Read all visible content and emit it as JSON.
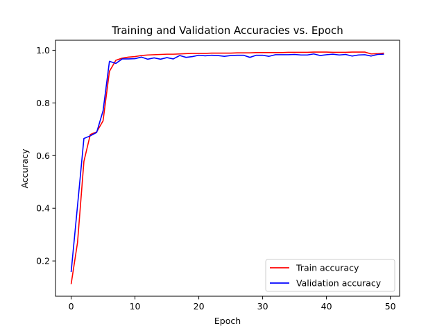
{
  "chart_data": {
    "type": "line",
    "title": "Training and Validation Accuracies vs. Epoch",
    "xlabel": "Epoch",
    "ylabel": "Accuracy",
    "xlim": [
      -2.45,
      51.45
    ],
    "ylim": [
      0.066,
      1.038
    ],
    "xticks": [
      0,
      10,
      20,
      30,
      40,
      50
    ],
    "yticks": [
      0.2,
      0.4,
      0.6,
      0.8,
      1.0
    ],
    "ytick_labels": [
      "0.2",
      "0.4",
      "0.6",
      "0.8",
      "1.0"
    ],
    "grid": false,
    "legend_position": "lower-right",
    "x": [
      0,
      1,
      2,
      3,
      4,
      5,
      6,
      7,
      8,
      9,
      10,
      11,
      12,
      13,
      14,
      15,
      16,
      17,
      18,
      19,
      20,
      21,
      22,
      23,
      24,
      25,
      26,
      27,
      28,
      29,
      30,
      31,
      32,
      33,
      34,
      35,
      36,
      37,
      38,
      39,
      40,
      41,
      42,
      43,
      44,
      45,
      46,
      47,
      48,
      49
    ],
    "series": [
      {
        "name": "Train accuracy",
        "color": "#ff0000",
        "values": [
          0.112,
          0.27,
          0.578,
          0.68,
          0.69,
          0.732,
          0.92,
          0.962,
          0.97,
          0.974,
          0.976,
          0.98,
          0.982,
          0.983,
          0.984,
          0.985,
          0.985,
          0.986,
          0.987,
          0.988,
          0.988,
          0.988,
          0.989,
          0.989,
          0.989,
          0.989,
          0.99,
          0.99,
          0.99,
          0.991,
          0.991,
          0.991,
          0.991,
          0.991,
          0.992,
          0.992,
          0.992,
          0.992,
          0.993,
          0.993,
          0.993,
          0.992,
          0.992,
          0.992,
          0.993,
          0.993,
          0.993,
          0.986,
          0.987,
          0.989
        ]
      },
      {
        "name": "Validation accuracy",
        "color": "#0000ff",
        "values": [
          0.158,
          0.41,
          0.665,
          0.675,
          0.688,
          0.77,
          0.958,
          0.95,
          0.967,
          0.967,
          0.968,
          0.974,
          0.966,
          0.971,
          0.966,
          0.972,
          0.967,
          0.98,
          0.973,
          0.976,
          0.981,
          0.979,
          0.981,
          0.98,
          0.977,
          0.98,
          0.981,
          0.981,
          0.973,
          0.981,
          0.981,
          0.977,
          0.983,
          0.983,
          0.983,
          0.984,
          0.982,
          0.982,
          0.986,
          0.98,
          0.983,
          0.985,
          0.982,
          0.984,
          0.978,
          0.982,
          0.983,
          0.978,
          0.984,
          0.985
        ]
      }
    ]
  }
}
